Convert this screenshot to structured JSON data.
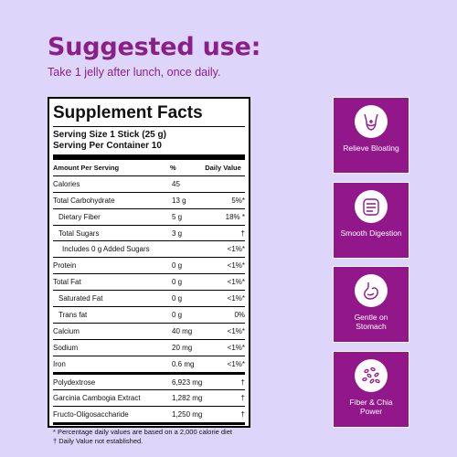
{
  "headline": "Suggested use:",
  "usage": "Take 1 jelly after lunch, once daily.",
  "facts": {
    "title": "Supplement Facts",
    "serving_size": "Serving Size 1 Stick (25 g)",
    "servings_per_container": "Serving Per Container 10",
    "columns": {
      "name": "Amount Per Serving",
      "amount": "%",
      "dv": "Daily Value"
    },
    "rows": [
      {
        "name": "Calories",
        "amount": "45",
        "dv": ""
      },
      {
        "name": "Total Carbohydrate",
        "amount": "13 g",
        "dv": "5%*"
      },
      {
        "name": "Dietary Fiber",
        "amount": "5 g",
        "dv": "18% *"
      },
      {
        "name": "Total Sugars",
        "amount": "3 g",
        "dv": "†"
      },
      {
        "name": "Includes 0 g Added Sugars",
        "amount": "",
        "dv": "<1%*"
      },
      {
        "name": "Protein",
        "amount": "0 g",
        "dv": "<1%*"
      },
      {
        "name": "Total Fat",
        "amount": "0 g",
        "dv": "<1%*"
      },
      {
        "name": "Saturated Fat",
        "amount": "0 g",
        "dv": "<1%*"
      },
      {
        "name": "Trans fat",
        "amount": "0 g",
        "dv": "0%"
      },
      {
        "name": "Calcium",
        "amount": "40 mg",
        "dv": "<1%*"
      },
      {
        "name": "Sodium",
        "amount": "20 mg",
        "dv": "<1%*"
      },
      {
        "name": "Iron",
        "amount": "0.6 mg",
        "dv": "<1%*"
      }
    ],
    "blend_rows": [
      {
        "name": "Polydextrose",
        "amount": "6,923 mg",
        "dv": "†"
      },
      {
        "name": "Garcinia Cambogia Extract",
        "amount": "1,282 mg",
        "dv": "†"
      },
      {
        "name": "Fructo-Oligosaccharide",
        "amount": "1,250 mg",
        "dv": "†"
      }
    ],
    "footnote1": "* Percentage daily values are based on a 2,000 calorie diet",
    "footnote2": "† Daily Value not established."
  },
  "benefits": [
    {
      "label": "Relieve Bloating",
      "icon": "bloating-icon"
    },
    {
      "label": "Smooth Digestion",
      "icon": "intestine-icon"
    },
    {
      "label": "Gentle on Stomach",
      "icon": "stomach-icon"
    },
    {
      "label": "Fiber & Chia Power",
      "icon": "seeds-icon"
    }
  ],
  "colors": {
    "background": "#ddd6fa",
    "accent": "#8a1f87",
    "tile": "#92178b"
  }
}
